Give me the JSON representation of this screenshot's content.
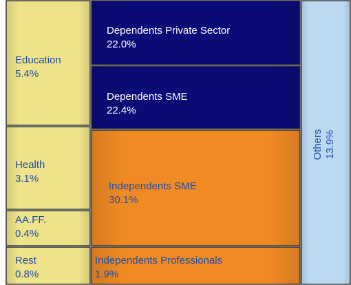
{
  "chart_data": {
    "type": "treemap",
    "categories": [
      "Education",
      "Health",
      "AA.FF.",
      "Rest",
      "Dependents Private Sector",
      "Dependents SME",
      "Independents SME",
      "Independents Professionals",
      "Others"
    ],
    "values": [
      5.4,
      3.1,
      0.4,
      0.8,
      22.0,
      22.4,
      30.1,
      1.9,
      13.9
    ],
    "value_labels": [
      "5.4%",
      "3.1%",
      "0.4%",
      "0.8%",
      "22.0%",
      "22.4%",
      "30.1%",
      "1.9%",
      "13.9%"
    ],
    "colors": [
      "#efe38a",
      "#efe38a",
      "#efe38a",
      "#efe38a",
      "#0b0b78",
      "#0b0b78",
      "#f08a24",
      "#f08a24",
      "#bcd9f2"
    ]
  }
}
